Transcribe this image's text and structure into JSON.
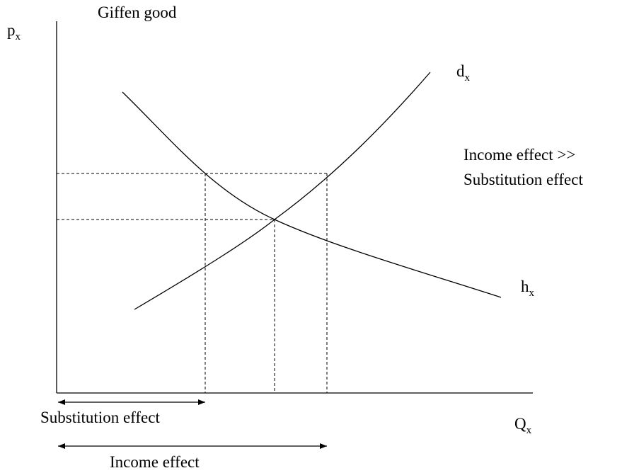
{
  "title": "Giffen good",
  "y_axis": {
    "base": "p",
    "sub": "x"
  },
  "x_axis": {
    "base": "Q",
    "sub": "x"
  },
  "curves": [
    {
      "base": "d",
      "sub": "x"
    },
    {
      "base": "h",
      "sub": "x"
    }
  ],
  "annotation": [
    "Income effect >>",
    "Substitution effect"
  ],
  "arrows": [
    "Substitution effect",
    "Income effect"
  ]
}
